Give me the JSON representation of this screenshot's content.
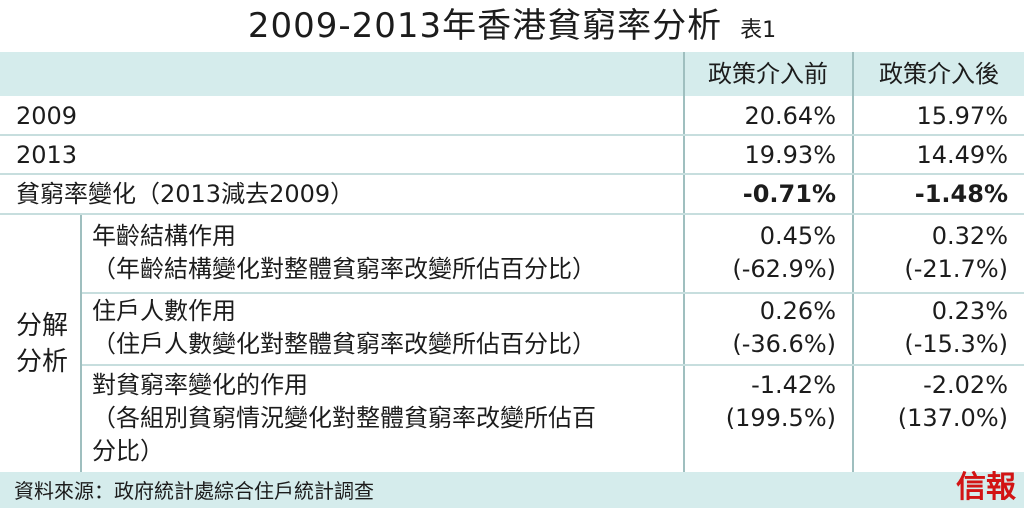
{
  "title": {
    "main": "2009-2013年香港貧窮率分析",
    "tag": "表1"
  },
  "columns": {
    "before": "政策介入前",
    "after": "政策介入後"
  },
  "rows": [
    {
      "label": "2009",
      "before": "20.64%",
      "after": "15.97%"
    },
    {
      "label": "2013",
      "before": "19.93%",
      "after": "14.49%"
    },
    {
      "label": "貧窮率變化（2013減去2009）",
      "before": "-0.71%",
      "after": "-1.48%"
    }
  ],
  "decomposition": {
    "group_label_line1": "分解",
    "group_label_line2": "分析",
    "items": [
      {
        "label": "年齡結構作用",
        "note": "（年齡結構變化對整體貧窮率改變所佔百分比）",
        "before": "0.45%",
        "before_pct": "(-62.9%)",
        "after": "0.32%",
        "after_pct": "(-21.7%)"
      },
      {
        "label": "住戶人數作用",
        "note": "（住戶人數變化對整體貧窮率改變所佔百分比）",
        "before": "0.26%",
        "before_pct": "(-36.6%)",
        "after": "0.23%",
        "after_pct": "(-15.3%)"
      },
      {
        "label": "對貧窮率變化的作用",
        "note": "（各組別貧窮情況變化對整體貧窮率改變所佔百",
        "note2": "分比）",
        "before": "-1.42%",
        "before_pct": "(199.5%)",
        "after": "-2.02%",
        "after_pct": "(137.0%)"
      }
    ]
  },
  "source": "資料來源：政府統計處綜合住戶統計調查",
  "logo": "信報",
  "colors": {
    "header_band": "#d5ecec",
    "logo": "#d21414",
    "lines": "#9fbfbf"
  }
}
